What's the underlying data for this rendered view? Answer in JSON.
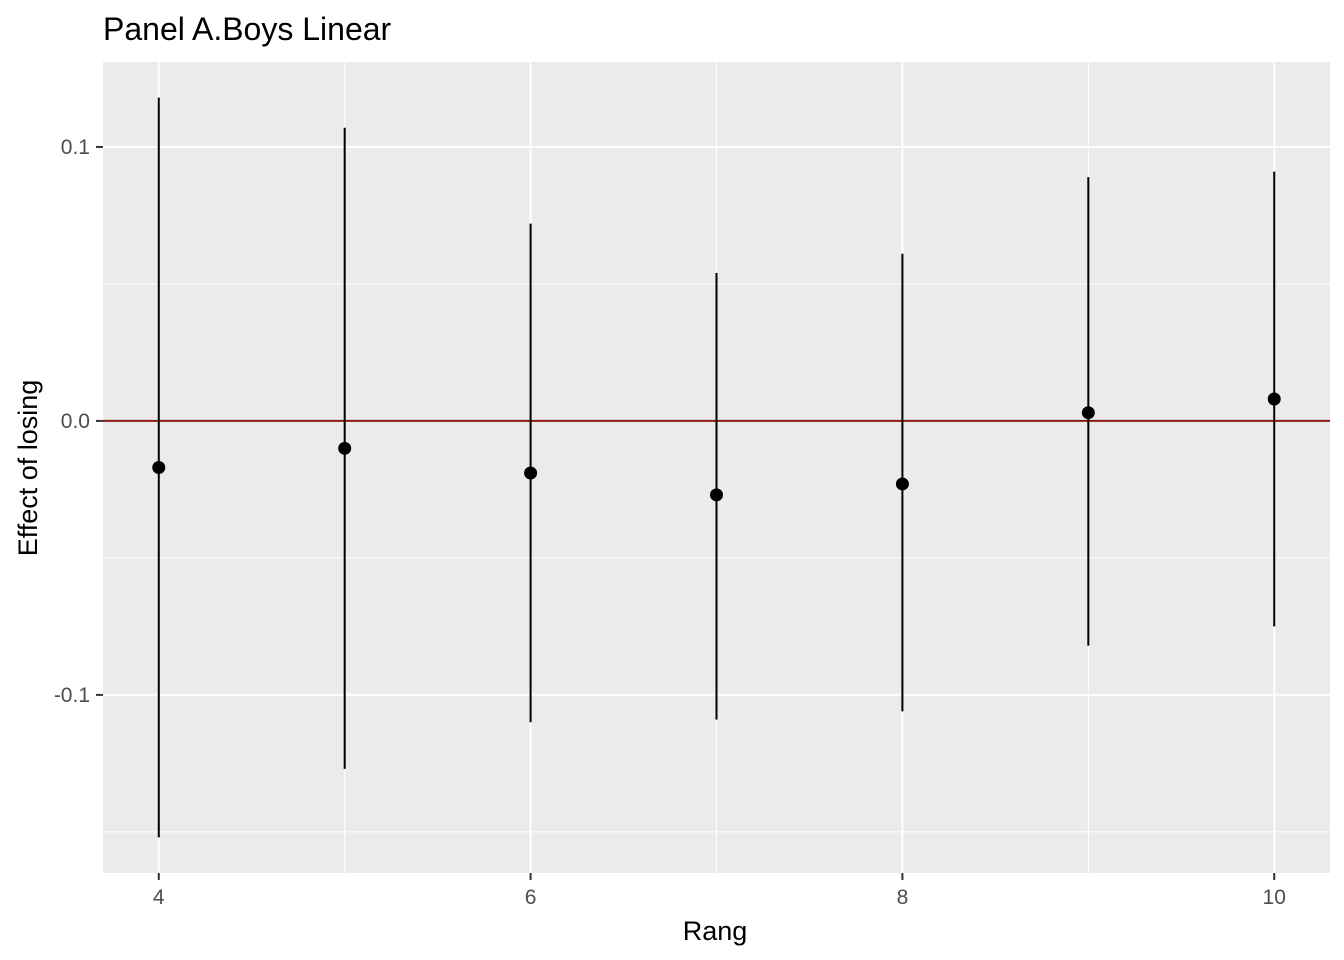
{
  "chart_data": {
    "type": "scatter",
    "title": "Panel A.Boys Linear",
    "xlabel": "Rang",
    "ylabel": "Effect of losing",
    "xlim": [
      3.7,
      10.3
    ],
    "ylim": [
      -0.165,
      0.131
    ],
    "x_ticks": [
      4,
      6,
      8,
      10
    ],
    "x_tick_labels": [
      "4",
      "6",
      "8",
      "10"
    ],
    "y_ticks": [
      -0.1,
      0.0,
      0.1
    ],
    "y_tick_labels": [
      "-0.1",
      "0.0",
      "0.1"
    ],
    "reference_line": {
      "y": 0.0,
      "color": "#8b1a1a"
    },
    "grid": true,
    "background": "#ebebeb",
    "point_color": "#000000",
    "points": [
      {
        "x": 4,
        "y": -0.017,
        "ymin": -0.152,
        "ymax": 0.118
      },
      {
        "x": 5,
        "y": -0.01,
        "ymin": -0.127,
        "ymax": 0.107
      },
      {
        "x": 6,
        "y": -0.019,
        "ymin": -0.11,
        "ymax": 0.072
      },
      {
        "x": 7,
        "y": -0.027,
        "ymin": -0.109,
        "ymax": 0.054
      },
      {
        "x": 8,
        "y": -0.023,
        "ymin": -0.106,
        "ymax": 0.061
      },
      {
        "x": 9,
        "y": 0.003,
        "ymin": -0.082,
        "ymax": 0.089
      },
      {
        "x": 10,
        "y": 0.008,
        "ymin": -0.075,
        "ymax": 0.091
      }
    ]
  }
}
